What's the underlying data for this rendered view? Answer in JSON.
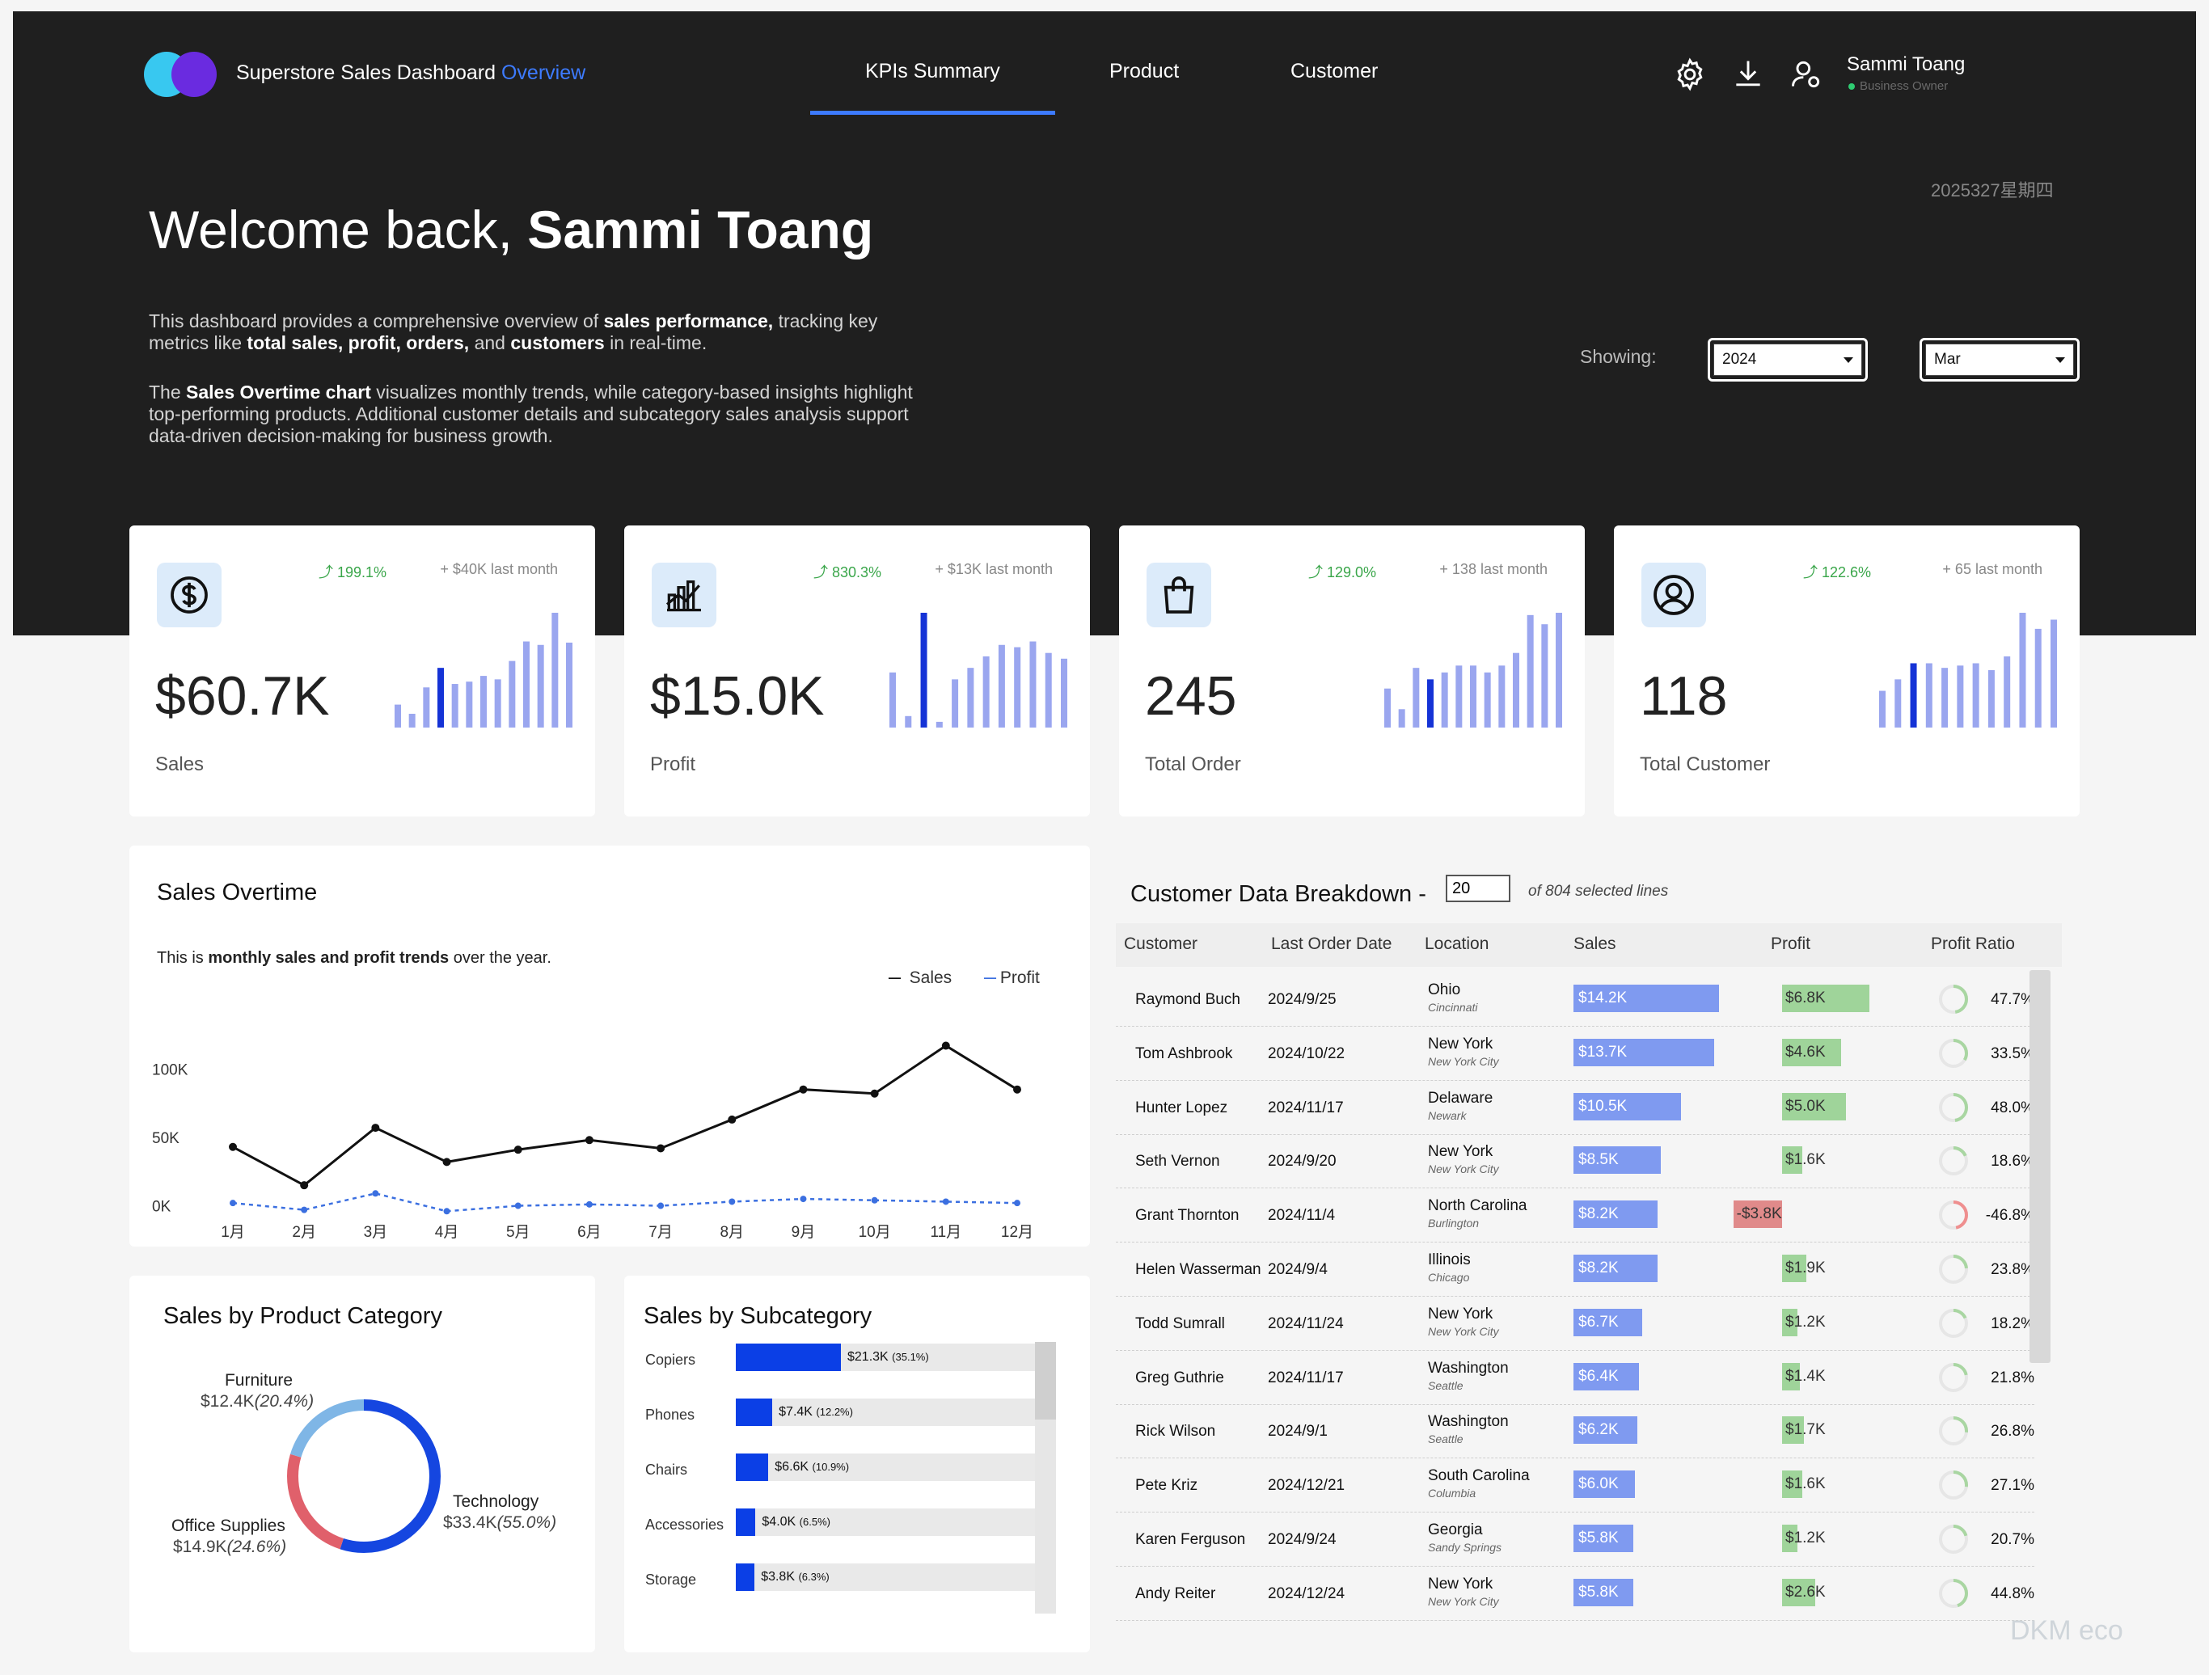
{
  "header": {
    "app_title": "Superstore Sales Dashboard",
    "app_title_accent": "Overview",
    "nav": [
      "KPIs Summary",
      "Product",
      "Customer"
    ],
    "user_name": "Sammi Toang",
    "user_role": "Business Owner",
    "date": "2025327星期四",
    "accent_color": "#3d7bff"
  },
  "welcome": {
    "prefix": "Welcome back,",
    "name": "Sammi Toang",
    "p1_a": "This dashboard provides a comprehensive overview of ",
    "p1_b": "sales performance,",
    "p1_c": " tracking key metrics like ",
    "p1_d": "total sales, profit, orders,",
    "p1_e": " and ",
    "p1_f": "customers",
    "p1_g": " in real-time.",
    "p2_a": "The ",
    "p2_b": "Sales Overtime chart",
    "p2_c": " visualizes monthly trends, while category-based insights highlight top-performing products. Additional customer details and subcategory sales analysis support data-driven decision-making for business growth."
  },
  "filters": {
    "showing_label": "Showing:",
    "year": "2024",
    "month": "Mar"
  },
  "kpis": [
    {
      "icon": "dollar-icon",
      "change": "199.1%",
      "last": "+ $40K last month",
      "value": "$60.7K",
      "label": "Sales",
      "spark": [
        0.2,
        0.12,
        0.35,
        0.52,
        0.38,
        0.4,
        0.45,
        0.42,
        0.58,
        0.75,
        0.72,
        1.0,
        0.74
      ],
      "hl": 3
    },
    {
      "icon": "chart-icon",
      "change": "830.3%",
      "last": "+ $13K last month",
      "value": "$15.0K",
      "label": "Profit",
      "spark": [
        0.48,
        0.1,
        1.0,
        0.05,
        0.42,
        0.52,
        0.62,
        0.72,
        0.7,
        0.75,
        0.65,
        0.6
      ],
      "hl": 2
    },
    {
      "icon": "shopping-bag-icon",
      "change": "129.0%",
      "last": "+ 138 last month",
      "value": "245",
      "label": "Total Order",
      "spark": [
        0.34,
        0.16,
        0.52,
        0.42,
        0.48,
        0.54,
        0.54,
        0.48,
        0.54,
        0.65,
        0.98,
        0.9,
        1.0
      ],
      "hl": 3
    },
    {
      "icon": "user-circle-icon",
      "change": "122.6%",
      "last": "+ 65 last month",
      "value": "118",
      "label": "Total Customer",
      "spark": [
        0.32,
        0.42,
        0.56,
        0.56,
        0.52,
        0.54,
        0.56,
        0.5,
        0.62,
        1.0,
        0.86,
        0.94
      ],
      "hl": 2
    }
  ],
  "sales_overtime": {
    "title": "Sales Overtime",
    "subtitle_a": "This is ",
    "subtitle_b": "monthly sales and profit trends",
    "subtitle_c": " over the year.",
    "chart_data": {
      "type": "line",
      "categories": [
        "1月",
        "2月",
        "3月",
        "4月",
        "5月",
        "6月",
        "7月",
        "8月",
        "9月",
        "10月",
        "11月",
        "12月"
      ],
      "series": [
        {
          "name": "Sales",
          "values": [
            43,
            15,
            57,
            32,
            41,
            48,
            42,
            63,
            85,
            82,
            117,
            85
          ]
        },
        {
          "name": "Profit",
          "values": [
            2,
            -3,
            9,
            -4,
            0,
            1,
            0,
            3,
            5,
            4,
            3,
            2
          ]
        }
      ],
      "y_ticks": [
        "100K",
        "50K",
        "0K"
      ],
      "ylim": [
        -5,
        125
      ]
    }
  },
  "category": {
    "title": "Sales by Product Category",
    "chart_data": {
      "type": "pie",
      "slices": [
        {
          "name": "Technology",
          "value": "$33.4K",
          "pct": "(55.0%)",
          "share": 55.0,
          "color": "#1546e0"
        },
        {
          "name": "Office Supplies",
          "value": "$14.9K",
          "pct": "(24.6%)",
          "share": 24.6,
          "color": "#e0606b"
        },
        {
          "name": "Furniture",
          "value": "$12.4K",
          "pct": "(20.4%)",
          "share": 20.4,
          "color": "#7fb6e6"
        }
      ]
    }
  },
  "subcategory": {
    "title": "Sales by Subcategory",
    "chart_data": {
      "type": "bar",
      "categories": [
        "Copiers",
        "Phones",
        "Chairs",
        "Accessories",
        "Storage"
      ],
      "values": [
        21.3,
        7.4,
        6.6,
        4.0,
        3.8
      ],
      "labels": [
        "$21.3K",
        "$7.4K",
        "$6.6K",
        "$4.0K",
        "$3.8K"
      ],
      "pcts": [
        "(35.1%)",
        "(12.2%)",
        "(10.9%)",
        "(6.5%)",
        "(6.3%)"
      ]
    }
  },
  "customers": {
    "title": "Customer Data Breakdown -",
    "lines_input": "20",
    "of_text": "of 804 selected lines",
    "headers": [
      "Customer",
      "Last Order Date",
      "Location",
      "Sales",
      "Profit",
      "Profit Ratio"
    ],
    "rows": [
      {
        "name": "Raymond Buch",
        "date": "2024/9/25",
        "state": "Ohio",
        "city": "Cincinnati",
        "sales": "$14.2K",
        "sales_v": 14.2,
        "profit": "$6.8K",
        "profit_v": 6.8,
        "ratio": "47.7%",
        "ratio_v": 47.7
      },
      {
        "name": "Tom Ashbrook",
        "date": "2024/10/22",
        "state": "New York",
        "city": "New York City",
        "sales": "$13.7K",
        "sales_v": 13.7,
        "profit": "$4.6K",
        "profit_v": 4.6,
        "ratio": "33.5%",
        "ratio_v": 33.5
      },
      {
        "name": "Hunter Lopez",
        "date": "2024/11/17",
        "state": "Delaware",
        "city": "Newark",
        "sales": "$10.5K",
        "sales_v": 10.5,
        "profit": "$5.0K",
        "profit_v": 5.0,
        "ratio": "48.0%",
        "ratio_v": 48.0
      },
      {
        "name": "Seth Vernon",
        "date": "2024/9/20",
        "state": "New York",
        "city": "New York City",
        "sales": "$8.5K",
        "sales_v": 8.5,
        "profit": "$1.6K",
        "profit_v": 1.6,
        "ratio": "18.6%",
        "ratio_v": 18.6
      },
      {
        "name": "Grant Thornton",
        "date": "2024/11/4",
        "state": "North Carolina",
        "city": "Burlington",
        "sales": "$8.2K",
        "sales_v": 8.2,
        "profit": "-$3.8K",
        "profit_v": -3.8,
        "ratio": "-46.8%",
        "ratio_v": -46.8
      },
      {
        "name": "Helen Wasserman",
        "date": "2024/9/4",
        "state": "Illinois",
        "city": "Chicago",
        "sales": "$8.2K",
        "sales_v": 8.2,
        "profit": "$1.9K",
        "profit_v": 1.9,
        "ratio": "23.8%",
        "ratio_v": 23.8
      },
      {
        "name": "Todd Sumrall",
        "date": "2024/11/24",
        "state": "New York",
        "city": "New York City",
        "sales": "$6.7K",
        "sales_v": 6.7,
        "profit": "$1.2K",
        "profit_v": 1.2,
        "ratio": "18.2%",
        "ratio_v": 18.2
      },
      {
        "name": "Greg Guthrie",
        "date": "2024/11/17",
        "state": "Washington",
        "city": "Seattle",
        "sales": "$6.4K",
        "sales_v": 6.4,
        "profit": "$1.4K",
        "profit_v": 1.4,
        "ratio": "21.8%",
        "ratio_v": 21.8
      },
      {
        "name": "Rick Wilson",
        "date": "2024/9/1",
        "state": "Washington",
        "city": "Seattle",
        "sales": "$6.2K",
        "sales_v": 6.2,
        "profit": "$1.7K",
        "profit_v": 1.7,
        "ratio": "26.8%",
        "ratio_v": 26.8
      },
      {
        "name": "Pete Kriz",
        "date": "2024/12/21",
        "state": "South Carolina",
        "city": "Columbia",
        "sales": "$6.0K",
        "sales_v": 6.0,
        "profit": "$1.6K",
        "profit_v": 1.6,
        "ratio": "27.1%",
        "ratio_v": 27.1
      },
      {
        "name": "Karen Ferguson",
        "date": "2024/9/24",
        "state": "Georgia",
        "city": "Sandy Springs",
        "sales": "$5.8K",
        "sales_v": 5.8,
        "profit": "$1.2K",
        "profit_v": 1.2,
        "ratio": "20.7%",
        "ratio_v": 20.7
      },
      {
        "name": "Andy Reiter",
        "date": "2024/12/24",
        "state": "New York",
        "city": "New York City",
        "sales": "$5.8K",
        "sales_v": 5.8,
        "profit": "$2.6K",
        "profit_v": 2.6,
        "ratio": "44.8%",
        "ratio_v": 44.8
      }
    ]
  },
  "watermark": "DKM eco"
}
